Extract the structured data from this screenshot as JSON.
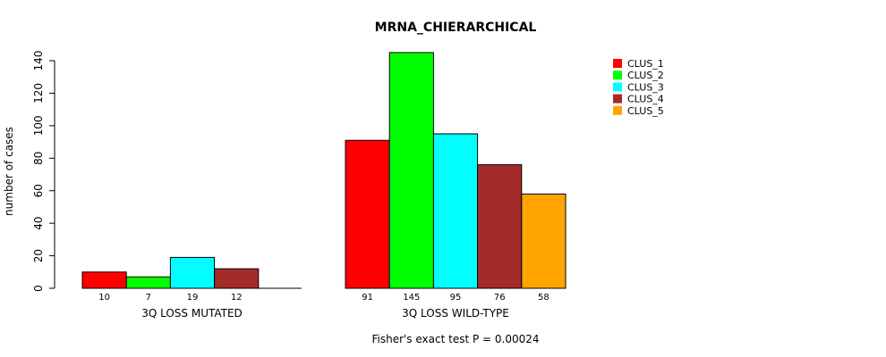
{
  "chart_data": {
    "type": "bar",
    "title": "MRNA_CHIERARCHICAL",
    "ylabel": "number of cases",
    "xlabel": "",
    "ylim": [
      0,
      140
    ],
    "yticks": [
      0,
      20,
      40,
      60,
      80,
      100,
      120,
      140
    ],
    "groups": [
      {
        "label": "3Q LOSS MUTATED",
        "values": [
          10,
          7,
          19,
          12,
          0
        ],
        "value_labels": [
          "10",
          "7",
          "19",
          "12",
          ""
        ]
      },
      {
        "label": "3Q LOSS WILD-TYPE",
        "values": [
          91,
          145,
          95,
          76,
          58
        ],
        "value_labels": [
          "91",
          "145",
          "95",
          "76",
          "58"
        ]
      }
    ],
    "series": [
      {
        "name": "CLUS_1",
        "color": "#ff0000"
      },
      {
        "name": "CLUS_2",
        "color": "#00ff00"
      },
      {
        "name": "CLUS_3",
        "color": "#00ffff"
      },
      {
        "name": "CLUS_4",
        "color": "#a52a2a"
      },
      {
        "name": "CLUS_5",
        "color": "#ffa500"
      }
    ],
    "legend_position": "top-right",
    "grid": false,
    "footer": "Fisher's exact test P = 0.00024"
  }
}
